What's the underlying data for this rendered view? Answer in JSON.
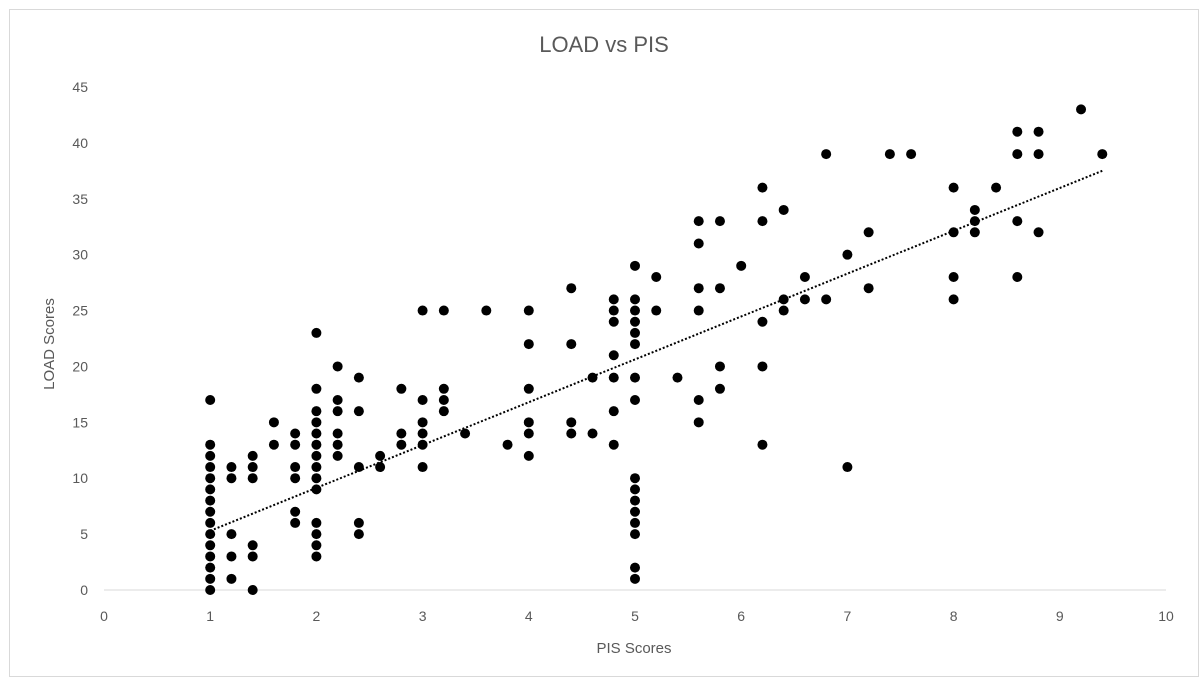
{
  "chart_data": {
    "type": "scatter",
    "title": "LOAD vs PIS",
    "xlabel": "PIS Scores",
    "ylabel": "LOAD Scores",
    "xlim": [
      0,
      10
    ],
    "ylim": [
      0,
      45
    ],
    "xticks": [
      "0",
      "1",
      "2",
      "3",
      "4",
      "5",
      "6",
      "7",
      "8",
      "9",
      "10"
    ],
    "yticks": [
      "0",
      "5",
      "10",
      "15",
      "20",
      "25",
      "30",
      "35",
      "40",
      "45"
    ],
    "grid": false,
    "legend": "none",
    "colors": {
      "points": "#000000",
      "trendline": "#000000",
      "axis": "#d9d9d9",
      "text": "#595959"
    },
    "trendline": {
      "style": "dotted",
      "x": [
        1,
        9.4
      ],
      "y": [
        5.3,
        37.5
      ]
    },
    "series": [
      {
        "points": [
          [
            1,
            17
          ],
          [
            1,
            13
          ],
          [
            1,
            12
          ],
          [
            1,
            11
          ],
          [
            1,
            10
          ],
          [
            1,
            9
          ],
          [
            1,
            8
          ],
          [
            1,
            7
          ],
          [
            1,
            6
          ],
          [
            1,
            5
          ],
          [
            1,
            4
          ],
          [
            1,
            3
          ],
          [
            1,
            2
          ],
          [
            1,
            1
          ],
          [
            1,
            0
          ],
          [
            1.2,
            11
          ],
          [
            1.2,
            10
          ],
          [
            1.2,
            5
          ],
          [
            1.2,
            3
          ],
          [
            1.2,
            1
          ],
          [
            1.4,
            12
          ],
          [
            1.4,
            11
          ],
          [
            1.4,
            10
          ],
          [
            1.4,
            4
          ],
          [
            1.4,
            3
          ],
          [
            1.4,
            0
          ],
          [
            1.6,
            15
          ],
          [
            1.6,
            13
          ],
          [
            1.8,
            14
          ],
          [
            1.8,
            13
          ],
          [
            1.8,
            11
          ],
          [
            1.8,
            10
          ],
          [
            1.8,
            7
          ],
          [
            1.8,
            6
          ],
          [
            2,
            23
          ],
          [
            2,
            18
          ],
          [
            2,
            16
          ],
          [
            2,
            15
          ],
          [
            2,
            14
          ],
          [
            2,
            13
          ],
          [
            2,
            12
          ],
          [
            2,
            11
          ],
          [
            2,
            10
          ],
          [
            2,
            9
          ],
          [
            2,
            6
          ],
          [
            2,
            5
          ],
          [
            2,
            4
          ],
          [
            2,
            3
          ],
          [
            2.2,
            20
          ],
          [
            2.2,
            17
          ],
          [
            2.2,
            16
          ],
          [
            2.2,
            14
          ],
          [
            2.2,
            13
          ],
          [
            2.2,
            12
          ],
          [
            2.4,
            19
          ],
          [
            2.4,
            16
          ],
          [
            2.4,
            11
          ],
          [
            2.4,
            6
          ],
          [
            2.4,
            5
          ],
          [
            2.6,
            12
          ],
          [
            2.6,
            11
          ],
          [
            2.8,
            18
          ],
          [
            2.8,
            14
          ],
          [
            2.8,
            13
          ],
          [
            3,
            25
          ],
          [
            3,
            17
          ],
          [
            3,
            15
          ],
          [
            3,
            14
          ],
          [
            3,
            13
          ],
          [
            3,
            11
          ],
          [
            3.2,
            25
          ],
          [
            3.2,
            18
          ],
          [
            3.2,
            17
          ],
          [
            3.2,
            16
          ],
          [
            3.4,
            14
          ],
          [
            3.6,
            25
          ],
          [
            3.8,
            13
          ],
          [
            4,
            25
          ],
          [
            4,
            22
          ],
          [
            4,
            18
          ],
          [
            4,
            15
          ],
          [
            4,
            14
          ],
          [
            4,
            12
          ],
          [
            4.4,
            27
          ],
          [
            4.4,
            22
          ],
          [
            4.4,
            15
          ],
          [
            4.4,
            14
          ],
          [
            4.6,
            19
          ],
          [
            4.6,
            14
          ],
          [
            4.8,
            26
          ],
          [
            4.8,
            25
          ],
          [
            4.8,
            24
          ],
          [
            4.8,
            21
          ],
          [
            4.8,
            19
          ],
          [
            4.8,
            16
          ],
          [
            4.8,
            13
          ],
          [
            5,
            29
          ],
          [
            5,
            26
          ],
          [
            5,
            25
          ],
          [
            5,
            24
          ],
          [
            5,
            23
          ],
          [
            5,
            22
          ],
          [
            5,
            19
          ],
          [
            5,
            17
          ],
          [
            5,
            10
          ],
          [
            5,
            9
          ],
          [
            5,
            8
          ],
          [
            5,
            7
          ],
          [
            5,
            6
          ],
          [
            5,
            5
          ],
          [
            5,
            2
          ],
          [
            5,
            1
          ],
          [
            5.2,
            28
          ],
          [
            5.2,
            25
          ],
          [
            5.4,
            19
          ],
          [
            5.6,
            33
          ],
          [
            5.6,
            31
          ],
          [
            5.6,
            27
          ],
          [
            5.6,
            25
          ],
          [
            5.6,
            17
          ],
          [
            5.6,
            15
          ],
          [
            5.8,
            33
          ],
          [
            5.8,
            27
          ],
          [
            5.8,
            20
          ],
          [
            5.8,
            18
          ],
          [
            6,
            29
          ],
          [
            6.2,
            36
          ],
          [
            6.2,
            33
          ],
          [
            6.2,
            24
          ],
          [
            6.2,
            20
          ],
          [
            6.2,
            13
          ],
          [
            6.4,
            34
          ],
          [
            6.4,
            26
          ],
          [
            6.4,
            25
          ],
          [
            6.6,
            28
          ],
          [
            6.6,
            26
          ],
          [
            6.8,
            39
          ],
          [
            6.8,
            26
          ],
          [
            7,
            30
          ],
          [
            7,
            11
          ],
          [
            7.2,
            32
          ],
          [
            7.2,
            27
          ],
          [
            7.4,
            39
          ],
          [
            7.6,
            39
          ],
          [
            8,
            36
          ],
          [
            8,
            32
          ],
          [
            8,
            28
          ],
          [
            8,
            26
          ],
          [
            8.2,
            34
          ],
          [
            8.2,
            33
          ],
          [
            8.2,
            32
          ],
          [
            8.4,
            36
          ],
          [
            8.6,
            41
          ],
          [
            8.6,
            39
          ],
          [
            8.6,
            33
          ],
          [
            8.6,
            28
          ],
          [
            8.8,
            41
          ],
          [
            8.8,
            39
          ],
          [
            8.8,
            32
          ],
          [
            9.2,
            43
          ],
          [
            9.4,
            39
          ]
        ]
      }
    ]
  }
}
